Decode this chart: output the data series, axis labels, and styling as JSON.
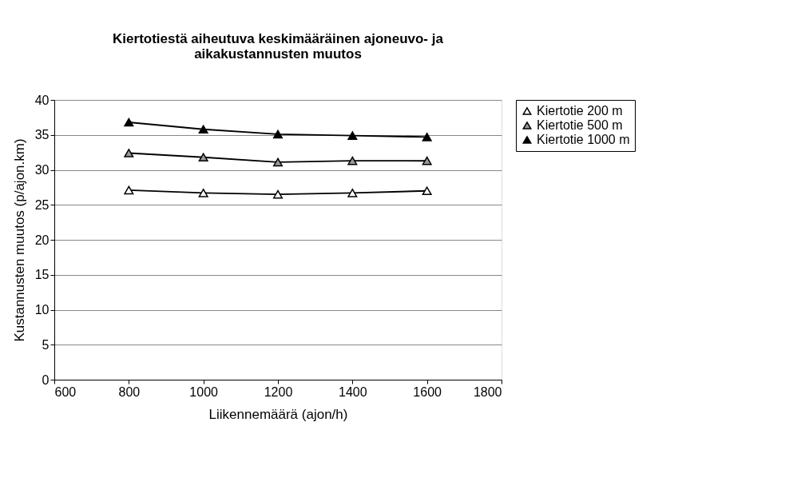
{
  "chart_data": {
    "type": "line",
    "title": [
      "Kiertotiestä aiheutuva keskimääräinen ajoneuvo- ja",
      "aikakustannusten muutos"
    ],
    "xlabel": "Liikennemäärä (ajon/h)",
    "ylabel": "Kustannusten muutos (p/ajon.km)",
    "x": [
      800,
      1000,
      1200,
      1400,
      1600
    ],
    "series": [
      {
        "name": "Kiertotie 200 m",
        "color": "#ffffff",
        "values": [
          27.1,
          26.7,
          26.5,
          26.7,
          27.0
        ]
      },
      {
        "name": "Kiertotie 500 m",
        "color": "#999999",
        "values": [
          32.4,
          31.8,
          31.1,
          31.3,
          31.3
        ]
      },
      {
        "name": "Kiertotie 1000 m",
        "color": "#000000",
        "values": [
          36.8,
          35.8,
          35.1,
          34.9,
          34.7
        ]
      }
    ],
    "xlim": [
      600,
      1800
    ],
    "xticks": [
      600,
      800,
      1000,
      1200,
      1400,
      1600,
      1800
    ],
    "ylim": [
      0,
      40
    ],
    "yticks": [
      0,
      5,
      10,
      15,
      20,
      25,
      30,
      35,
      40
    ],
    "grid": "y",
    "legend": "right",
    "marker": "triangle",
    "line_style": "solid"
  }
}
